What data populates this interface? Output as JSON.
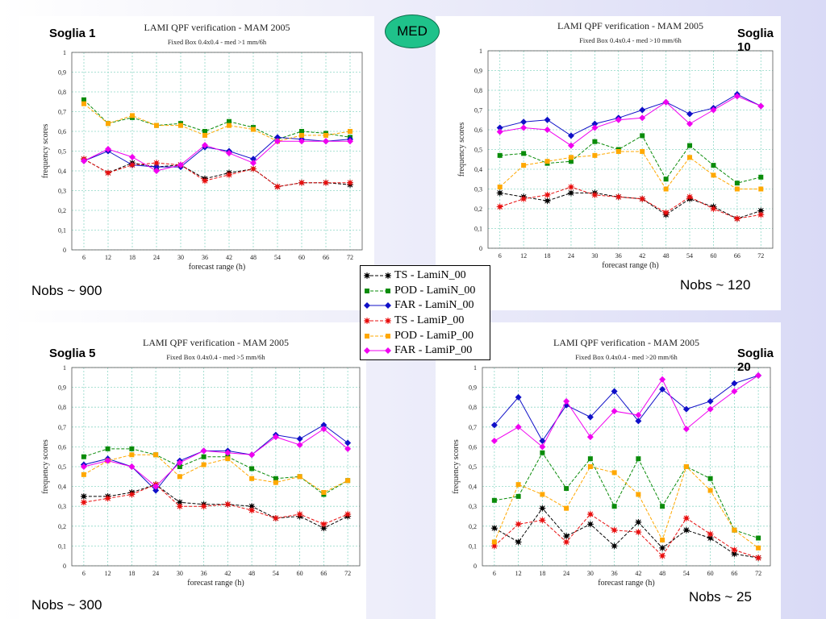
{
  "badge": "MED",
  "legend": [
    {
      "name": "TS - LamiN_00",
      "color": "#000000",
      "marker": "star"
    },
    {
      "name": "POD - LamiN_00",
      "color": "#0a8c0a",
      "marker": "square"
    },
    {
      "name": "FAR - LamiN_00",
      "color": "#1010c8",
      "marker": "diamond"
    },
    {
      "name": "TS - LamiP_00",
      "color": "#e81010",
      "marker": "star"
    },
    {
      "name": "POD - LamiP_00",
      "color": "#ffa800",
      "marker": "square"
    },
    {
      "name": "FAR - LamiP_00",
      "color": "#f000f0",
      "marker": "diamond"
    }
  ],
  "chart_data": [
    {
      "type": "line",
      "panel_label": "Soglia 1",
      "nobs": "Nobs ~ 900",
      "title": "LAMI QPF verification - MAM 2005",
      "subtitle": "Fixed Box 0.4x0.4 - med >1 mm/6h",
      "xlabel": "forecast range (h)",
      "ylabel": "frequency scores",
      "x": [
        6,
        12,
        18,
        24,
        30,
        36,
        42,
        48,
        54,
        60,
        66,
        72
      ],
      "ylim": [
        0,
        1
      ],
      "yticks": [
        "0",
        "0,1",
        "0,2",
        "0,3",
        "0,4",
        "0,5",
        "0,6",
        "0,7",
        "0,8",
        "0,9",
        "1"
      ],
      "grid": true,
      "series": [
        {
          "name": "TS - LamiN_00",
          "values": [
            0.46,
            0.39,
            0.44,
            0.42,
            0.43,
            0.36,
            0.39,
            0.41,
            0.32,
            0.34,
            0.34,
            0.33
          ]
        },
        {
          "name": "POD - LamiN_00",
          "values": [
            0.76,
            0.64,
            0.67,
            0.63,
            0.64,
            0.6,
            0.65,
            0.62,
            0.56,
            0.6,
            0.59,
            0.57
          ]
        },
        {
          "name": "FAR - LamiN_00",
          "values": [
            0.45,
            0.5,
            0.43,
            0.42,
            0.42,
            0.52,
            0.5,
            0.46,
            0.57,
            0.56,
            0.55,
            0.56
          ]
        },
        {
          "name": "TS - LamiP_00",
          "values": [
            0.46,
            0.39,
            0.43,
            0.44,
            0.43,
            0.35,
            0.38,
            0.41,
            0.32,
            0.34,
            0.34,
            0.34
          ]
        },
        {
          "name": "POD - LamiP_00",
          "values": [
            0.74,
            0.64,
            0.68,
            0.63,
            0.63,
            0.58,
            0.63,
            0.61,
            0.55,
            0.58,
            0.58,
            0.6
          ]
        },
        {
          "name": "FAR - LamiP_00",
          "values": [
            0.45,
            0.51,
            0.47,
            0.4,
            0.43,
            0.53,
            0.49,
            0.44,
            0.55,
            0.55,
            0.55,
            0.55
          ]
        }
      ]
    },
    {
      "type": "line",
      "panel_label": "Soglia 10",
      "nobs": "Nobs ~ 120",
      "title": "LAMI QPF verification - MAM 2005",
      "subtitle": "Fixed Box 0.4x0.4 - med >10 mm/6h",
      "xlabel": "forecast range (h)",
      "ylabel": "frequency scores",
      "x": [
        6,
        12,
        18,
        24,
        30,
        36,
        42,
        48,
        54,
        60,
        66,
        72
      ],
      "ylim": [
        0,
        1
      ],
      "yticks": [
        "0",
        "0,1",
        "0,2",
        "0,3",
        "0,4",
        "0,5",
        "0,6",
        "0,7",
        "0,8",
        "0,9",
        "1"
      ],
      "grid": true,
      "series": [
        {
          "name": "TS - LamiN_00",
          "values": [
            0.28,
            0.26,
            0.24,
            0.28,
            0.28,
            0.26,
            0.25,
            0.17,
            0.25,
            0.21,
            0.15,
            0.19
          ]
        },
        {
          "name": "POD - LamiN_00",
          "values": [
            0.47,
            0.48,
            0.43,
            0.44,
            0.54,
            0.5,
            0.57,
            0.35,
            0.52,
            0.42,
            0.33,
            0.36
          ]
        },
        {
          "name": "FAR - LamiN_00",
          "values": [
            0.61,
            0.64,
            0.65,
            0.57,
            0.63,
            0.66,
            0.7,
            0.74,
            0.68,
            0.71,
            0.78,
            0.72
          ]
        },
        {
          "name": "TS - LamiP_00",
          "values": [
            0.21,
            0.25,
            0.27,
            0.31,
            0.27,
            0.26,
            0.25,
            0.18,
            0.26,
            0.2,
            0.15,
            0.17
          ]
        },
        {
          "name": "POD - LamiP_00",
          "values": [
            0.31,
            0.42,
            0.44,
            0.46,
            0.47,
            0.49,
            0.49,
            0.3,
            0.46,
            0.37,
            0.3,
            0.3
          ]
        },
        {
          "name": "FAR - LamiP_00",
          "values": [
            0.59,
            0.61,
            0.6,
            0.52,
            0.61,
            0.65,
            0.66,
            0.74,
            0.63,
            0.7,
            0.77,
            0.72
          ]
        }
      ]
    },
    {
      "type": "line",
      "panel_label": "Soglia 5",
      "nobs": "Nobs ~ 300",
      "title": "LAMI QPF verification - MAM 2005",
      "subtitle": "Fixed Box 0.4x0.4 - med >5 mm/6h",
      "xlabel": "forecast range (h)",
      "ylabel": "frequency scores",
      "x": [
        6,
        12,
        18,
        24,
        30,
        36,
        42,
        48,
        54,
        60,
        66,
        72
      ],
      "ylim": [
        0,
        1
      ],
      "yticks": [
        "0",
        "0,1",
        "0,2",
        "0,3",
        "0,4",
        "0,5",
        "0,6",
        "0,7",
        "0,8",
        "0,9",
        "1"
      ],
      "grid": true,
      "series": [
        {
          "name": "TS - LamiN_00",
          "values": [
            0.35,
            0.35,
            0.37,
            0.41,
            0.32,
            0.31,
            0.31,
            0.3,
            0.24,
            0.25,
            0.19,
            0.25
          ]
        },
        {
          "name": "POD - LamiN_00",
          "values": [
            0.55,
            0.59,
            0.59,
            0.56,
            0.5,
            0.55,
            0.55,
            0.49,
            0.44,
            0.45,
            0.36,
            0.43
          ]
        },
        {
          "name": "FAR - LamiN_00",
          "values": [
            0.51,
            0.54,
            0.5,
            0.38,
            0.53,
            0.58,
            0.58,
            0.56,
            0.66,
            0.64,
            0.71,
            0.62
          ]
        },
        {
          "name": "TS - LamiP_00",
          "values": [
            0.32,
            0.34,
            0.36,
            0.41,
            0.3,
            0.3,
            0.31,
            0.28,
            0.24,
            0.26,
            0.21,
            0.26
          ]
        },
        {
          "name": "POD - LamiP_00",
          "values": [
            0.46,
            0.53,
            0.56,
            0.56,
            0.45,
            0.51,
            0.54,
            0.44,
            0.42,
            0.45,
            0.37,
            0.43
          ]
        },
        {
          "name": "FAR - LamiP_00",
          "values": [
            0.5,
            0.53,
            0.5,
            0.4,
            0.52,
            0.58,
            0.57,
            0.56,
            0.65,
            0.61,
            0.69,
            0.59
          ]
        }
      ]
    },
    {
      "type": "line",
      "panel_label": "Soglia 20",
      "nobs": "Nobs ~ 25",
      "title": "LAMI QPF verification - MAM 2005",
      "subtitle": "Fixed Box 0.4x0.4 - med >20 mm/6h",
      "xlabel": "forecast range (h)",
      "ylabel": "frequency scores",
      "x": [
        6,
        12,
        18,
        24,
        30,
        36,
        42,
        48,
        54,
        60,
        66,
        72
      ],
      "ylim": [
        0,
        1
      ],
      "yticks": [
        "0",
        "0,1",
        "0,2",
        "0,3",
        "0,4",
        "0,5",
        "0,6",
        "0,7",
        "0,8",
        "0,9",
        "1"
      ],
      "grid": true,
      "series": [
        {
          "name": "TS - LamiN_00",
          "values": [
            0.19,
            0.12,
            0.29,
            0.15,
            0.21,
            0.1,
            0.22,
            0.09,
            0.18,
            0.14,
            0.06,
            0.04
          ]
        },
        {
          "name": "POD - LamiN_00",
          "values": [
            0.33,
            0.35,
            0.57,
            0.39,
            0.54,
            0.3,
            0.54,
            0.3,
            0.5,
            0.44,
            0.18,
            0.14
          ]
        },
        {
          "name": "FAR - LamiN_00",
          "values": [
            0.71,
            0.85,
            0.63,
            0.81,
            0.75,
            0.88,
            0.73,
            0.89,
            0.79,
            0.83,
            0.92,
            0.96
          ]
        },
        {
          "name": "TS - LamiP_00",
          "values": [
            0.1,
            0.21,
            0.23,
            0.12,
            0.26,
            0.18,
            0.17,
            0.05,
            0.24,
            0.16,
            0.08,
            0.04
          ]
        },
        {
          "name": "POD - LamiP_00",
          "values": [
            0.12,
            0.41,
            0.36,
            0.29,
            0.5,
            0.47,
            0.36,
            0.13,
            0.5,
            0.38,
            0.18,
            0.09
          ]
        },
        {
          "name": "FAR - LamiP_00",
          "values": [
            0.63,
            0.7,
            0.6,
            0.83,
            0.65,
            0.78,
            0.76,
            0.94,
            0.69,
            0.79,
            0.88,
            0.96
          ]
        }
      ]
    }
  ]
}
